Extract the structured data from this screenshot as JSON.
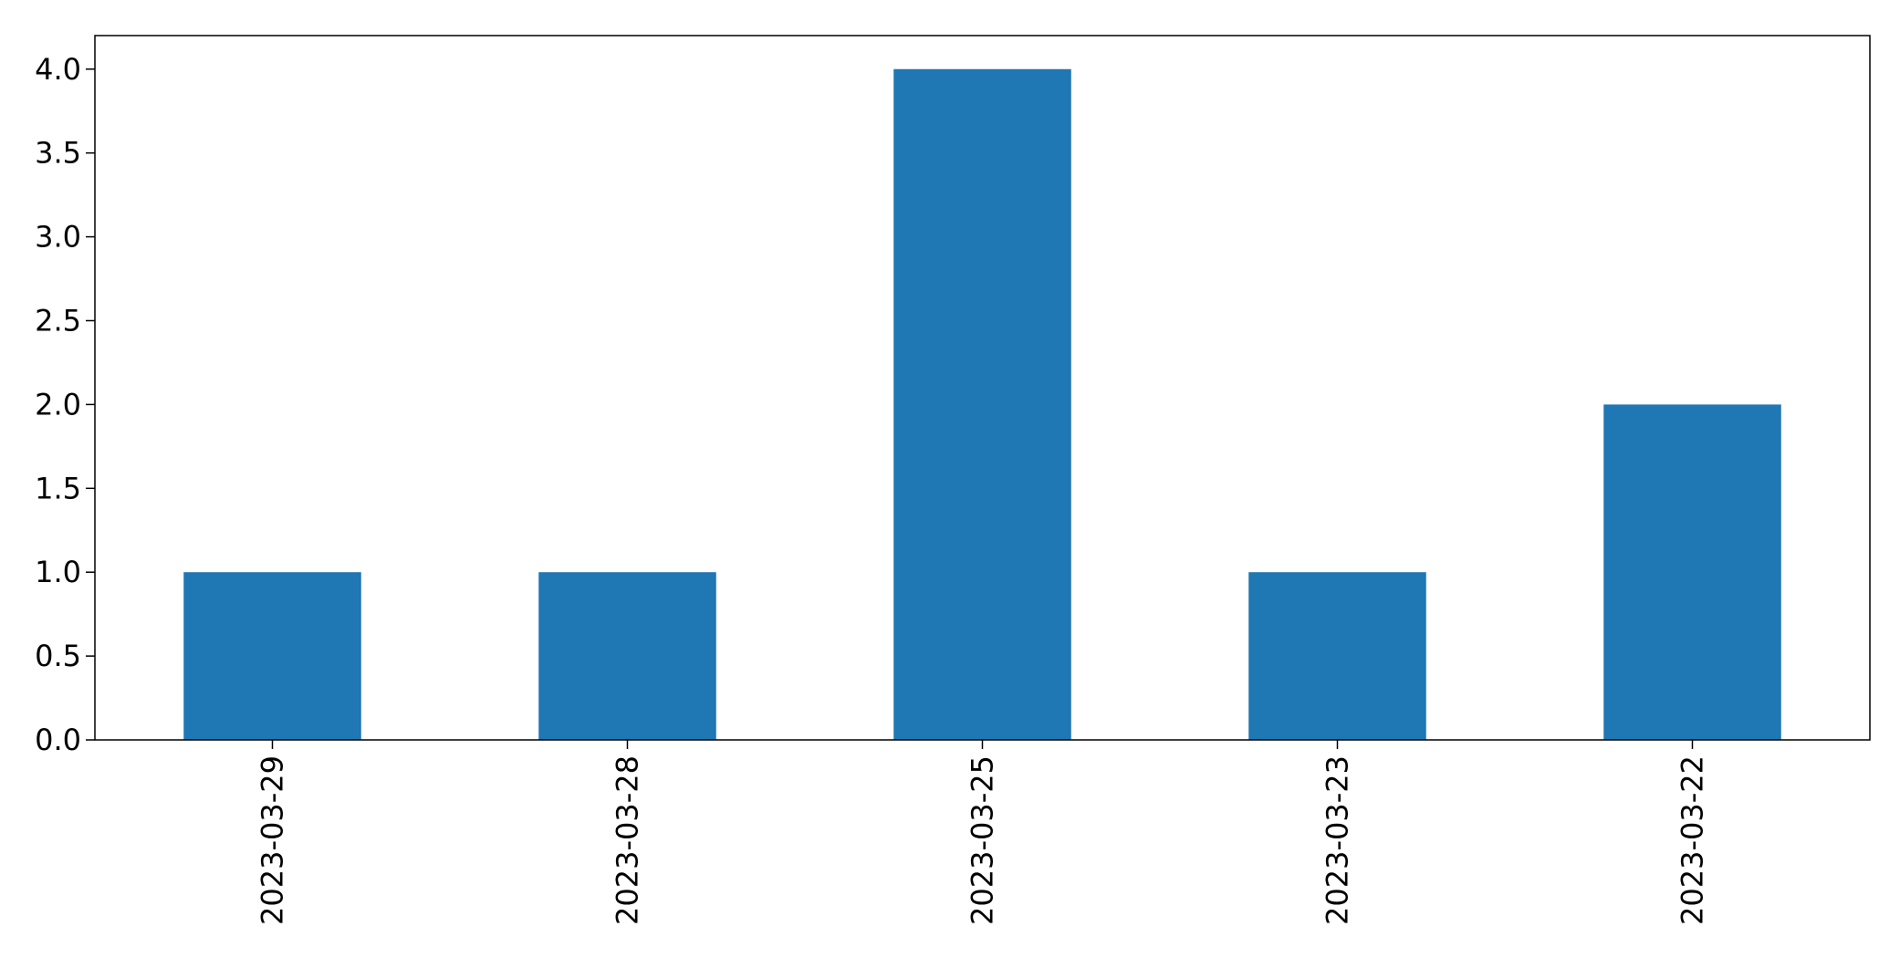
{
  "chart_data": {
    "type": "bar",
    "categories": [
      "2023-03-29",
      "2023-03-28",
      "2023-03-25",
      "2023-03-23",
      "2023-03-22"
    ],
    "values": [
      1,
      1,
      4,
      1,
      2
    ],
    "title": "",
    "xlabel": "",
    "ylabel": "",
    "ylim": [
      0,
      4.2
    ],
    "yticks": [
      "0.0",
      "0.5",
      "1.0",
      "1.5",
      "2.0",
      "2.5",
      "3.0",
      "3.5",
      "4.0"
    ],
    "grid": false,
    "legend": "none",
    "bar_color": "#1f77b4"
  }
}
